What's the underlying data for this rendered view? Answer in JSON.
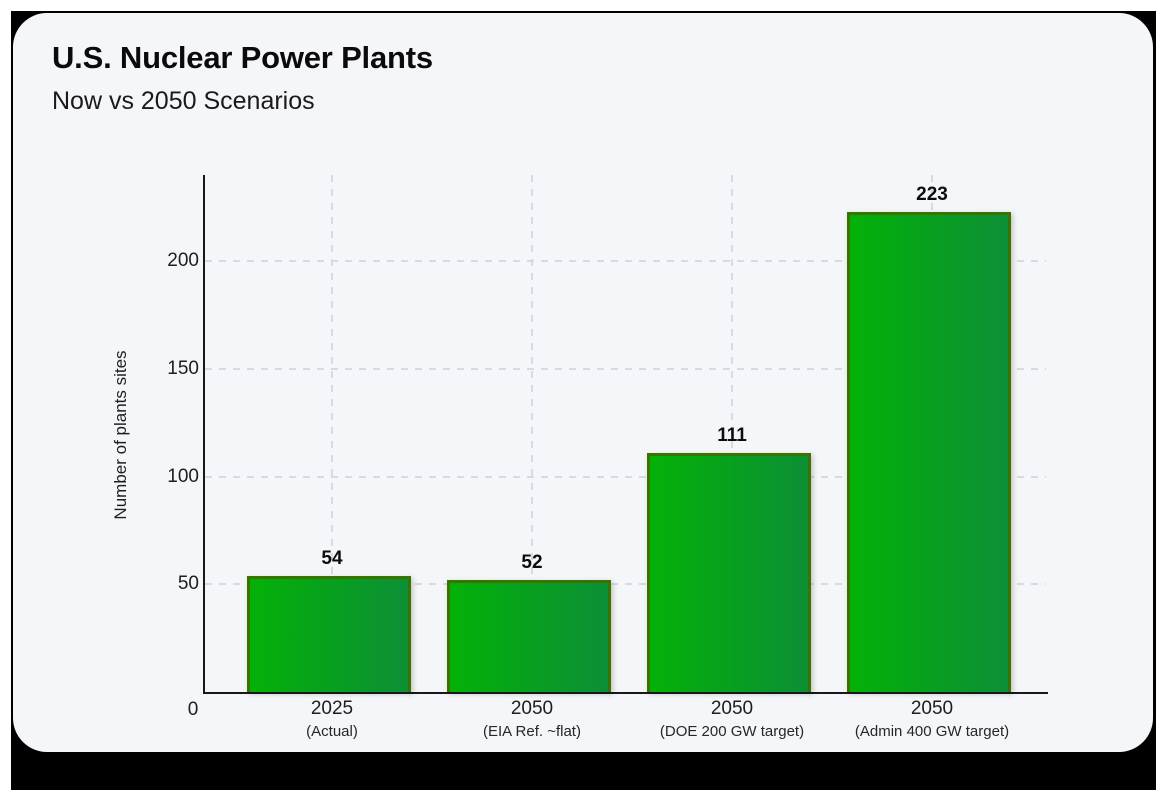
{
  "frame": {
    "background": "#000000",
    "page_background": "#ffffff"
  },
  "card": {
    "background": "#f5f6f9"
  },
  "chart_data": {
    "type": "bar",
    "title": "U.S. Nuclear Power Plants",
    "subtitle": "Now vs 2050 Scenarios",
    "ylabel": "Number of plants sites",
    "xlabel": "",
    "categories": [
      "2025",
      "2050",
      "2050",
      "2050"
    ],
    "category_sublabels": [
      "(Actual)",
      "(EIA Ref. ~flat)",
      "(DOE 200 GW target)",
      "(Admin 400 GW target)"
    ],
    "values": [
      54,
      52,
      111,
      223
    ],
    "value_labels": [
      "54",
      "52",
      "111",
      "223"
    ],
    "yticks": [
      0,
      50,
      100,
      150,
      200
    ],
    "ylim": [
      0,
      240
    ],
    "legend_position": "none",
    "grid": {
      "horizontal": "dashed",
      "vertical": "dashed",
      "color": "#d7dae0"
    },
    "colors": {
      "bar_gradient_left": "#03b107",
      "bar_gradient_right": "#0c8f36",
      "bar_border": "#3b7300",
      "axis": "#17171c",
      "text": "#1d1d22"
    }
  }
}
